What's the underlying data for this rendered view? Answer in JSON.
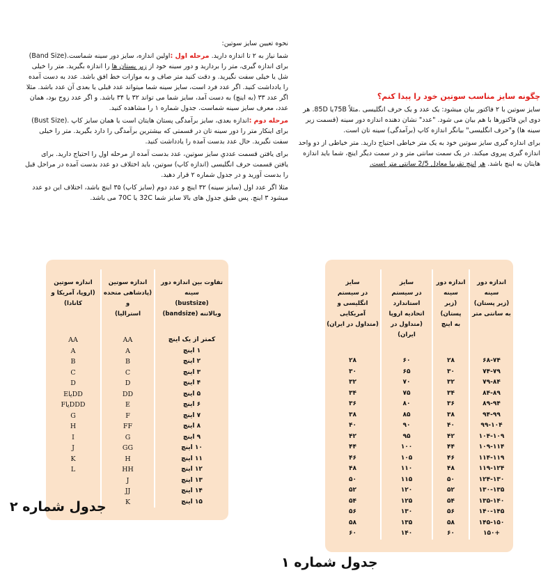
{
  "left_text": {
    "lines": [
      [
        {
          "t": "نحوه تعیین سایز سوتین:"
        }
      ],
      [
        {
          "t": "شما نیاز به ۲ تا اندازه دارید. "
        },
        {
          "t": "مرحله اول :",
          "red": true
        },
        {
          "t": "اولین اندازه، سایز دور سینه شماست.(Band Size)  برای"
        }
      ],
      [
        {
          "t": "اندازه گیری، متر را بردارید و دور سینه خود از "
        },
        {
          "t": "زیر پستان ها",
          "ul": true
        },
        {
          "t": " را اندازه بگیرید. متر را خیلی شل یا خیلی"
        }
      ],
      [
        {
          "t": "سفت نگیرید. و دقت کنید متر صاف و به موازات خط افق باشد. عدد به دست آمده را یادداشت کنید."
        }
      ],
      [
        {
          "t": "اگر عدد فرد است، سایز سینه شما میتواند عدد قبلی یا بعدی آن عدد باشد. مثلا اگر عدد ۳۳ (به اینچ)"
        }
      ],
      [
        {
          "t": "به دست آمد، سایز شما می تواند ۳۲ یا ۳۴ باشد. و اگر عدد زوج بود، همان عدد، معرف سایز سینه"
        }
      ],
      [
        {
          "t": "شماست. جدول شماره ۱ را مشاهده کنید."
        }
      ],
      [
        {
          "t": "مرحله دوم :",
          "red": true
        },
        {
          "t": "اندازه بعدی، سایز برآمدگی پستان هایتان است یا همان سایز کاپ .(Bust Size) برای"
        }
      ],
      [
        {
          "t": "اینکار متر را دور سینه تان در قسمتی که بیشترین برآمدگی را دارد بگیرید. متر را خیلی سفت نگیرید."
        }
      ],
      [
        {
          "t": "حال عدد بدست آمده را یادداشت کنید."
        }
      ],
      [
        {
          "t": "برای یافتن قسمت عددیِ سایز سوتین، عدد بدست آمده از مرحله اول را احتیاج دارید. برای یافتن"
        }
      ],
      [
        {
          "t": "قسمت حرف انگلیسی (اندازه کاپ) سوتین، باید اختلاف دو عدد بدست آمده در مراحل قبل را بدست"
        }
      ],
      [
        {
          "t": "آورید و در جدول شماره ۲ قرار دهید."
        }
      ],
      [
        {
          "t": "مثلا اگر عدد اول (سایز سینه) ۳۲ اینچ و عدد دوم (سایز کاپ) ۳۵ اینچ باشد، اختلاف این دو عدد میشود"
        }
      ],
      [
        {
          "t": "۳ اینچ. پس طبق جدول های بالا سایز شما  32C یا 70C می باشد."
        }
      ]
    ]
  },
  "right_text": {
    "title": "چگونه سایز مناسب سوتین خود را پیدا کنم؟",
    "lines": [
      [
        {
          "t": "سایز سوتین با ۲ فاکتور بیان میشود: یک عدد و یک حرف انگلیسی .مثلاً  75Bیا 85D. هر دوی این"
        }
      ],
      [
        {
          "t": "فاکتورها با هم بیان می شود. \"عدد\"  نشان دهنده اندازه دور سینه (قسمت زیر سینه ها) و\"حرف"
        }
      ],
      [
        {
          "t": "انگلیسی\" بیانگر اندازه کاپ (برآمدگی) سینه تان است."
        }
      ],
      [
        {
          "t": "برای اندازه گیری سایز سوتین خود به یک متر خیاطی احتیاج دارید. متر خیاطی از دو واحد اندازه گیری"
        }
      ],
      [
        {
          "t": "پیروی میکند. در یک سمت سانتی متر و در سمت دیگر اینچ، شما باید اندازه هایتان به اینچ باشد. "
        },
        {
          "t": "هر",
          "ul": true
        }
      ],
      [
        {
          "t": "اینچ تقریبا معادل 2/5 سانتي متر است.",
          "ul": true
        }
      ]
    ]
  },
  "table1": {
    "caption": "جدول شماره ۱",
    "columns": [
      {
        "header": [
          "اندازه دور",
          "سینه",
          "(زیر پستان)",
          "به سانتی متر"
        ],
        "cells": [
          "۶۸-۷۴",
          "۷۴-۷۹",
          "۷۹-۸۴",
          "۸۴-۸۹",
          "۸۹-۹۴",
          "۹۴-۹۹",
          "۹۹-۱۰۴",
          "۱۰۴-۱۰۹",
          "۱۰۹-۱۱۴",
          "۱۱۴-۱۱۹",
          "۱۱۹-۱۲۴",
          "۱۲۴-۱۳۰",
          "۱۳۰-۱۳۵",
          "۱۳۵-۱۴۰",
          "۱۴۰-۱۴۵",
          "۱۴۵-۱۵۰",
          "+۱۵۰"
        ]
      },
      {
        "header": [
          "اندازه دور",
          "سینه",
          "(زیر پستان)",
          "به اینچ"
        ],
        "cells": [
          "۲۸",
          "۳۰",
          "۳۲",
          "۳۴",
          "۳۶",
          "۳۸",
          "۴۰",
          "۴۲",
          "۴۴",
          "۴۶",
          "۴۸",
          "۵۰",
          "۵۲",
          "۵۴",
          "۵۶",
          "۵۸",
          "۶۰"
        ]
      },
      {
        "header": [
          "سایز",
          "در سیستم",
          "استاندارد",
          "اتحادیه اروپا",
          "(متداول در ایران)"
        ],
        "cells": [
          "۶۰",
          "۶۵",
          "۷۰",
          "۷۵",
          "۸۰",
          "۸۵",
          "۹۰",
          "۹۵",
          "۱۰۰",
          "۱۰۵",
          "۱۱۰",
          "۱۱۵",
          "۱۲۰",
          "۱۲۵",
          "۱۳۰",
          "۱۳۵",
          "۱۴۰"
        ]
      },
      {
        "header": [
          "سایز",
          "در سیستم",
          "انگلیسی و",
          "آمریکایی",
          "(متداول در ایران)"
        ],
        "cells": [
          "۲۸",
          "۳۰",
          "۳۲",
          "۳۴",
          "۳۶",
          "۳۸",
          "۴۰",
          "۴۲",
          "۴۴",
          "۴۶",
          "۴۸",
          "۵۰",
          "۵۲",
          "۵۴",
          "۵۶",
          "۵۸",
          "۶۰"
        ]
      }
    ]
  },
  "table2": {
    "caption": "جدول شماره ۲",
    "columns": [
      {
        "header": [
          "تفاوت بین اندازه دور سینه",
          "(bustsize)",
          "وبالاتنه (bandsize)"
        ],
        "cells": [
          "کمتر از یک اینچ",
          "۱ اینچ",
          "۲ اینچ",
          "۳ اینچ",
          "۴ اینچ",
          "۵ اینچ",
          "۶ اینچ",
          "۷ اینچ",
          "۸ اینچ",
          "۹ اینچ",
          "۱۰ اینچ",
          "۱۱ اینچ",
          "۱۲ اینچ",
          "۱۳ اینچ",
          "۱۴ اینچ",
          "۱۵ اینچ"
        ]
      },
      {
        "header": [
          "اندازه سوتین",
          "(پادشاهی متحده و",
          "استرالیا)"
        ],
        "cells": [
          "AA",
          "A",
          "B",
          "C",
          "D",
          "DD",
          "E",
          "F",
          "FF",
          "G",
          "GG",
          "H",
          "HH",
          "J",
          "JJ",
          "K"
        ]
      },
      {
        "header": [
          "اندازه سوتین",
          "(اروپا، آمریکا و",
          "کانادا)"
        ],
        "cells": [
          "AA",
          "A",
          "B",
          "C",
          "D",
          "DDیاE",
          "DDDیاF",
          "G",
          "H",
          "I",
          "J",
          "K",
          "L"
        ]
      }
    ]
  },
  "colors": {
    "accent_red": "#e0201c",
    "table_bg": "#fbe2c9"
  }
}
